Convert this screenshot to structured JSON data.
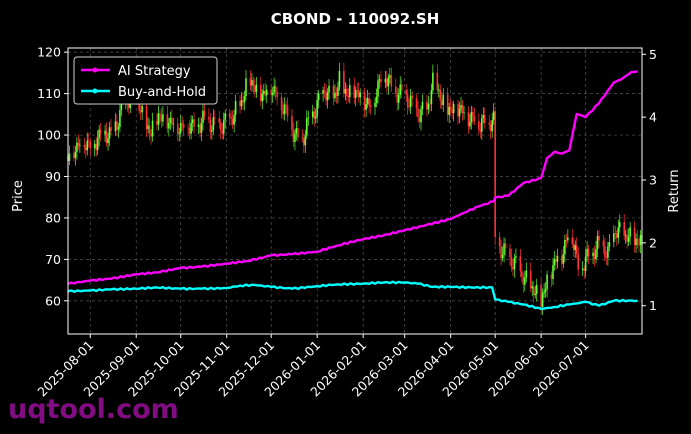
{
  "chart_data": {
    "type": "line",
    "title": "CBOND - 110092.SH",
    "ylabel_left": "Price",
    "ylabel_right": "Return",
    "ylim_left": [
      52,
      121
    ],
    "ylim_right": [
      0.55,
      5.1
    ],
    "yticks_left": [
      60,
      70,
      80,
      90,
      100,
      110,
      120
    ],
    "yticks_right": [
      1,
      2,
      3,
      4,
      5
    ],
    "xticks": [
      "2025-08-01",
      "2025-09-01",
      "2025-10-01",
      "2025-11-01",
      "2025-12-01",
      "2026-01-01",
      "2026-02-01",
      "2026-03-01",
      "2026-04-01",
      "2026-05-01",
      "2026-06-01",
      "2026-07-01"
    ],
    "grid": true,
    "legend_position": "top-left",
    "series": [
      {
        "name": "AI Strategy",
        "color": "#ff00ff",
        "axis": "right",
        "x": [
          "2025-07-17",
          "2025-08-01",
          "2025-08-15",
          "2025-09-01",
          "2025-09-15",
          "2025-10-01",
          "2025-10-15",
          "2025-11-01",
          "2025-11-15",
          "2025-12-01",
          "2025-12-15",
          "2026-01-01",
          "2026-01-15",
          "2026-02-01",
          "2026-02-15",
          "2026-03-01",
          "2026-03-15",
          "2026-04-01",
          "2026-04-10",
          "2026-04-20",
          "2026-04-30",
          "2026-05-01",
          "2026-05-10",
          "2026-05-20",
          "2026-06-01",
          "2026-06-05",
          "2026-06-10",
          "2026-06-15",
          "2026-06-20",
          "2026-06-25",
          "2026-07-01",
          "2026-07-10",
          "2026-07-20",
          "2026-07-25",
          "2026-08-01",
          "2026-08-05"
        ],
        "values": [
          1.35,
          1.4,
          1.43,
          1.5,
          1.53,
          1.6,
          1.62,
          1.67,
          1.71,
          1.8,
          1.82,
          1.86,
          1.96,
          2.06,
          2.12,
          2.2,
          2.28,
          2.38,
          2.48,
          2.58,
          2.66,
          2.72,
          2.75,
          2.95,
          3.03,
          3.35,
          3.45,
          3.42,
          3.47,
          4.05,
          4.0,
          4.22,
          4.55,
          4.6,
          4.72,
          4.73
        ]
      },
      {
        "name": "Buy-and-Hold",
        "color": "#00ffff",
        "axis": "right",
        "x": [
          "2025-07-17",
          "2025-08-01",
          "2025-08-15",
          "2025-09-01",
          "2025-09-15",
          "2025-10-01",
          "2025-10-15",
          "2025-11-01",
          "2025-11-10",
          "2025-11-20",
          "2025-12-01",
          "2025-12-15",
          "2026-01-01",
          "2026-01-15",
          "2026-02-01",
          "2026-02-15",
          "2026-03-01",
          "2026-03-10",
          "2026-03-20",
          "2026-04-01",
          "2026-04-15",
          "2026-04-29",
          "2026-05-01",
          "2026-05-10",
          "2026-05-20",
          "2026-06-01",
          "2026-06-10",
          "2026-06-20",
          "2026-07-01",
          "2026-07-10",
          "2026-07-20",
          "2026-08-05"
        ],
        "values": [
          1.23,
          1.24,
          1.26,
          1.27,
          1.29,
          1.27,
          1.27,
          1.28,
          1.32,
          1.33,
          1.3,
          1.27,
          1.31,
          1.34,
          1.35,
          1.37,
          1.37,
          1.35,
          1.3,
          1.3,
          1.29,
          1.29,
          1.1,
          1.06,
          1.02,
          0.95,
          0.98,
          1.02,
          1.06,
          1.0,
          1.08,
          1.08
        ]
      }
    ],
    "candles": {
      "axis": "left",
      "up_color": "#66ff33",
      "down_color": "#ff3333",
      "points": [
        [
          "2025-07-17",
          95
        ],
        [
          "2025-07-22",
          97
        ],
        [
          "2025-07-27",
          99
        ],
        [
          "2025-08-01",
          97.5
        ],
        [
          "2025-08-05",
          99
        ],
        [
          "2025-08-10",
          101
        ],
        [
          "2025-08-15",
          100
        ],
        [
          "2025-08-20",
          104
        ],
        [
          "2025-08-25",
          108
        ],
        [
          "2025-09-01",
          111
        ],
        [
          "2025-09-06",
          103
        ],
        [
          "2025-09-11",
          101
        ],
        [
          "2025-09-16",
          105
        ],
        [
          "2025-09-21",
          104
        ],
        [
          "2025-09-26",
          103
        ],
        [
          "2025-10-01",
          102
        ],
        [
          "2025-10-06",
          103
        ],
        [
          "2025-10-11",
          102
        ],
        [
          "2025-10-16",
          104
        ],
        [
          "2025-10-21",
          103
        ],
        [
          "2025-10-26",
          102
        ],
        [
          "2025-11-01",
          103
        ],
        [
          "2025-11-06",
          105
        ],
        [
          "2025-11-11",
          108
        ],
        [
          "2025-11-16",
          114
        ],
        [
          "2025-11-21",
          111
        ],
        [
          "2025-11-26",
          110
        ],
        [
          "2025-12-01",
          112
        ],
        [
          "2025-12-06",
          109
        ],
        [
          "2025-12-11",
          106
        ],
        [
          "2025-12-16",
          101
        ],
        [
          "2025-12-21",
          98
        ],
        [
          "2025-12-26",
          103
        ],
        [
          "2026-01-01",
          107
        ],
        [
          "2026-01-06",
          111
        ],
        [
          "2026-01-11",
          108
        ],
        [
          "2026-01-16",
          113
        ],
        [
          "2026-01-21",
          110
        ],
        [
          "2026-01-26",
          111
        ],
        [
          "2026-02-01",
          109
        ],
        [
          "2026-02-06",
          107
        ],
        [
          "2026-02-11",
          112
        ],
        [
          "2026-02-16",
          115
        ],
        [
          "2026-02-21",
          111
        ],
        [
          "2026-02-26",
          110
        ],
        [
          "2026-03-01",
          110
        ],
        [
          "2026-03-06",
          107
        ],
        [
          "2026-03-11",
          105
        ],
        [
          "2026-03-16",
          106
        ],
        [
          "2026-03-21",
          114
        ],
        [
          "2026-03-26",
          108
        ],
        [
          "2026-04-01",
          106
        ],
        [
          "2026-04-06",
          107
        ],
        [
          "2026-04-11",
          105
        ],
        [
          "2026-04-16",
          104
        ],
        [
          "2026-04-21",
          103
        ],
        [
          "2026-04-26",
          103.5
        ],
        [
          "2026-05-01",
          75
        ],
        [
          "2026-05-06",
          72
        ],
        [
          "2026-05-11",
          70
        ],
        [
          "2026-05-16",
          68
        ],
        [
          "2026-05-21",
          65
        ],
        [
          "2026-05-26",
          63
        ],
        [
          "2026-06-01",
          60
        ],
        [
          "2026-06-06",
          66
        ],
        [
          "2026-06-11",
          70
        ],
        [
          "2026-06-16",
          72
        ],
        [
          "2026-06-21",
          78
        ],
        [
          "2026-06-26",
          68
        ],
        [
          "2026-07-01",
          70
        ],
        [
          "2026-07-06",
          72
        ],
        [
          "2026-07-11",
          74
        ],
        [
          "2026-07-16",
          71
        ],
        [
          "2026-07-21",
          77
        ],
        [
          "2026-07-26",
          76
        ],
        [
          "2026-08-01",
          75
        ],
        [
          "2026-08-05",
          74
        ]
      ]
    }
  },
  "watermark": "uqtool.com"
}
